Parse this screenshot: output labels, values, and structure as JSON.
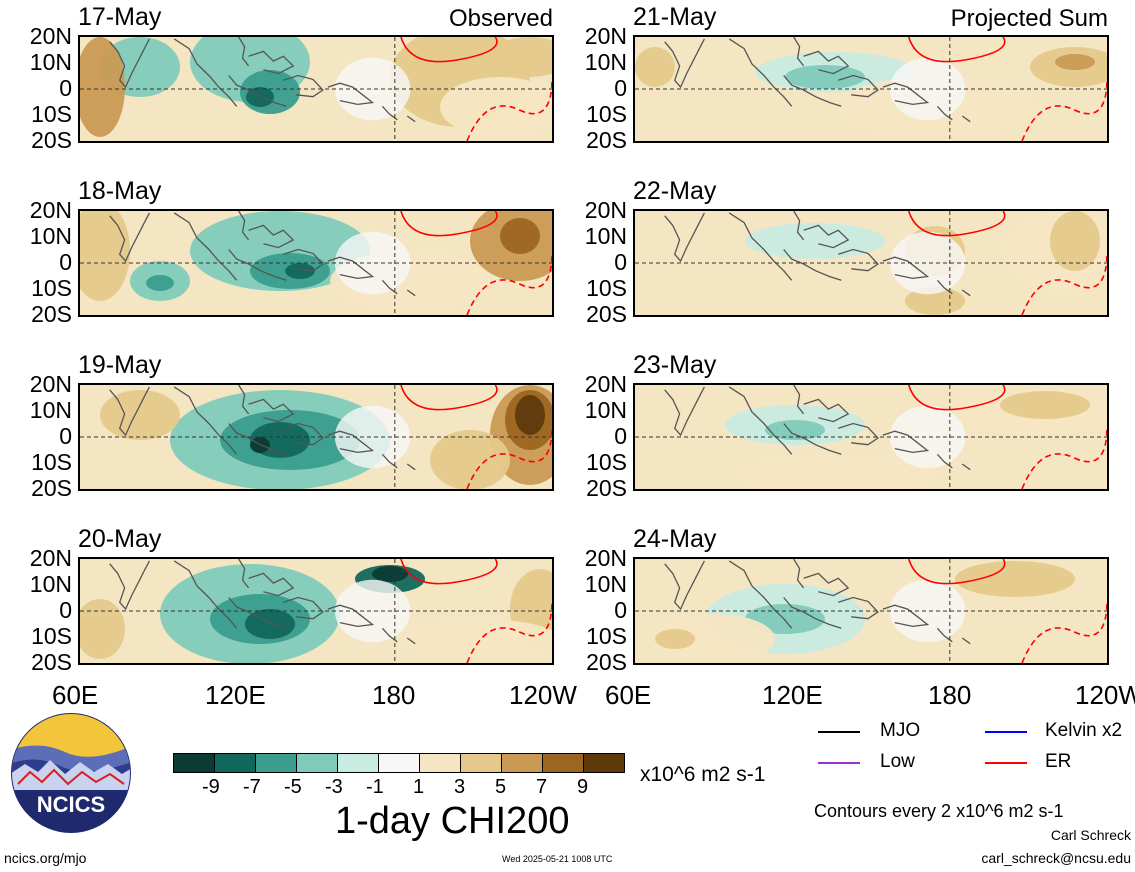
{
  "panels_left": [
    {
      "date": "17-May",
      "tag": "Observed"
    },
    {
      "date": "18-May",
      "tag": ""
    },
    {
      "date": "19-May",
      "tag": ""
    },
    {
      "date": "20-May",
      "tag": ""
    }
  ],
  "panels_right": [
    {
      "date": "21-May",
      "tag": "Projected Sum"
    },
    {
      "date": "22-May",
      "tag": ""
    },
    {
      "date": "23-May",
      "tag": ""
    },
    {
      "date": "24-May",
      "tag": ""
    }
  ],
  "lat_labels": [
    "20N",
    "10N",
    "0",
    "10S",
    "20S"
  ],
  "lon_labels": [
    "60E",
    "120E",
    "180",
    "120W"
  ],
  "colorbar": {
    "colors": [
      "#0b3b32",
      "#12675c",
      "#3a9d8e",
      "#7fcbbb",
      "#c8ebe2",
      "#f7f7f7",
      "#f5e6c3",
      "#e5c98c",
      "#c99a53",
      "#9c6521",
      "#5e3a0c"
    ],
    "ticks": [
      "-9",
      "-7",
      "-5",
      "-3",
      "-1",
      "1",
      "3",
      "5",
      "7",
      "9"
    ],
    "units": "x10^6 m2 s-1"
  },
  "title": "1-day CHI200",
  "legend": [
    {
      "label": "MJO",
      "color": "#000000"
    },
    {
      "label": "Kelvin x2",
      "color": "#0000ff"
    },
    {
      "label": "Low",
      "color": "#9932cc"
    },
    {
      "label": "ER",
      "color": "#ff0000"
    }
  ],
  "contours_note": "Contours every 2 x10^6 m2 s-1",
  "author": "Carl Schreck",
  "email": "carl_schreck@ncsu.edu",
  "site": "ncics.org/mjo",
  "timestamp": "Wed 2025-05-21 1008 UTC",
  "logo_text": "NCICS"
}
